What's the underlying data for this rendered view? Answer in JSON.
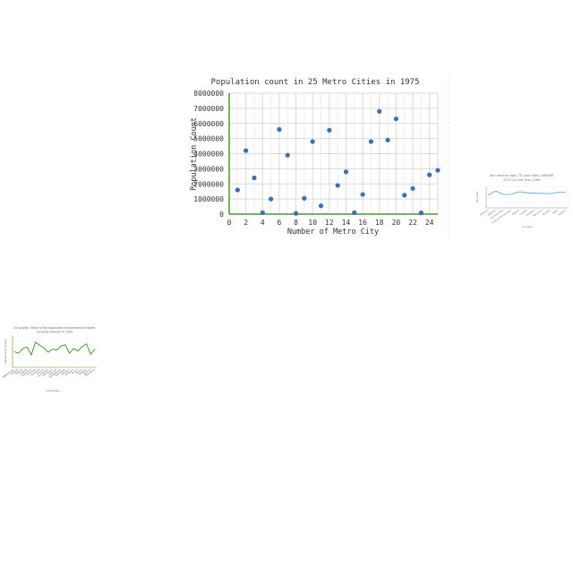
{
  "chart_data": [
    {
      "type": "scatter",
      "title": "Population count in 25 Metro Cities in 1975",
      "xlabel": "Number of Metro City",
      "ylabel": "Population Count",
      "xlim": [
        0,
        25
      ],
      "ylim": [
        0,
        8000000
      ],
      "xticks": [
        0,
        2,
        4,
        6,
        8,
        10,
        12,
        14,
        16,
        18,
        20,
        22,
        24
      ],
      "yticks": [
        0,
        1000000,
        2000000,
        3000000,
        4000000,
        5000000,
        6000000,
        7000000,
        8000000
      ],
      "grid": true,
      "series": [
        {
          "color": "#3a6eb5",
          "x": [
            1,
            2,
            3,
            4,
            5,
            6,
            7,
            8,
            9,
            10,
            11,
            12,
            13,
            14,
            15,
            16,
            17,
            18,
            19,
            20,
            21,
            22,
            23,
            24,
            25
          ],
          "y": [
            1600000,
            4200000,
            2400000,
            100000,
            1000000,
            5600000,
            3900000,
            50000,
            1050000,
            4800000,
            550000,
            5550000,
            1900000,
            2800000,
            100000,
            1300000,
            4800000,
            6800000,
            4900000,
            6300000,
            1250000,
            1700000,
            80000,
            2600000,
            2900000
          ]
        }
      ]
    },
    {
      "type": "line",
      "title": "Sex ratio by age (70 year olds) (UNWPP, 2017) in the year 1966",
      "xlabel": "Country",
      "ylabel": "Sex ratio",
      "categories": [
        "Belarus",
        "Bahrain",
        "Burkina Faso",
        "Central African Rep.",
        "Algeria",
        "Croatia",
        "Hungary",
        "Mauritius",
        "Norway",
        "Qatar",
        "Sweden"
      ],
      "series": [
        {
          "color": "#5b9bd5",
          "values": [
            60,
            78,
            62,
            63,
            75,
            70,
            68,
            67,
            66,
            72,
            74
          ]
        }
      ],
      "ylim": [
        0,
        100
      ]
    },
    {
      "type": "line",
      "title": "Air quality: Share of the population with environmental health tracking network in 1995",
      "xlabel": "Countries",
      "ylabel": "Values of air quality",
      "categories": [
        "Afghanistan",
        "Albania",
        "Algeria",
        "Angola",
        "Argentina",
        "Armenia",
        "Australia",
        "Austria",
        "Azerbaijan",
        "Bahamas",
        "Bahrain",
        "Bangladesh",
        "Barbados",
        "Belarus",
        "Belgium",
        "Belize",
        "Benin",
        "Bhutan",
        "Bolivia",
        "Botswana"
      ],
      "series": [
        {
          "color": "#3a8a2a",
          "values": [
            50,
            45,
            60,
            65,
            40,
            80,
            70,
            62,
            48,
            58,
            55,
            68,
            72,
            45,
            60,
            52,
            66,
            75,
            42,
            58
          ]
        }
      ],
      "ylim": [
        0,
        100
      ]
    }
  ]
}
